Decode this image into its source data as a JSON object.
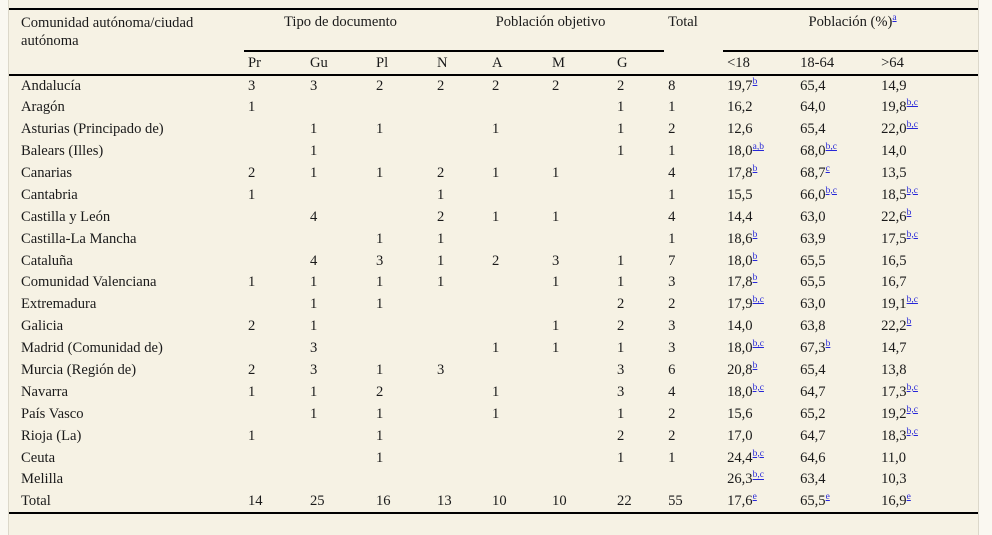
{
  "colors": {
    "footnote_link": "#2626d8",
    "table_bg": "#f6f2e4",
    "page_bg": "#faf8f1",
    "text": "#1a1a1a",
    "rule": "#000000"
  },
  "table": {
    "region_header": "Comunidad autónoma/ciudad autónoma",
    "group_tipo": "Tipo de documento",
    "group_poblacion_objetivo": "Población objetivo",
    "group_total": "Total",
    "group_poblacion_pct": "Población (%)",
    "group_poblacion_pct_sup": "a",
    "subheaders": [
      "Pr",
      "Gu",
      "Pl",
      "N",
      "A",
      "M",
      "G",
      "<18",
      "18-64",
      ">64"
    ],
    "rows": [
      [
        "Andalucía",
        "3",
        "3",
        "2",
        "2",
        "2",
        "2",
        "2",
        "8",
        "19,7^b",
        "65,4",
        "14,9"
      ],
      [
        "Aragón",
        "1",
        "",
        "",
        "",
        "",
        "",
        "1",
        "1",
        "16,2",
        "64,0",
        "19,8^b,c"
      ],
      [
        "Asturias (Principado de)",
        "",
        "1",
        "1",
        "",
        "1",
        "",
        "1",
        "2",
        "12,6",
        "65,4",
        "22,0^b,c"
      ],
      [
        "Balears (Illes)",
        "",
        "1",
        "",
        "",
        "",
        "",
        "1",
        "1",
        "18,0^a,b",
        "68,0^b,c",
        "14,0"
      ],
      [
        "Canarias",
        "2",
        "1",
        "1",
        "2",
        "1",
        "1",
        "",
        "4",
        "17,8^b",
        "68,7^c",
        "13,5"
      ],
      [
        "Cantabria",
        "1",
        "",
        "",
        "1",
        "",
        "",
        "",
        "1",
        "15,5",
        "66,0^b,c",
        "18,5^b,c"
      ],
      [
        "Castilla y León",
        "",
        "4",
        "",
        "2",
        "1",
        "1",
        "",
        "4",
        "14,4",
        "63,0",
        "22,6^b"
      ],
      [
        "Castilla-La Mancha",
        "",
        "",
        "1",
        "1",
        "",
        "",
        "",
        "1",
        "18,6^b",
        "63,9",
        "17,5^b,c"
      ],
      [
        "Cataluña",
        "",
        "4",
        "3",
        "1",
        "2",
        "3",
        "1",
        "7",
        "18,0^b",
        "65,5",
        "16,5"
      ],
      [
        "Comunidad Valenciana",
        "1",
        "1",
        "1",
        "1",
        "",
        "1",
        "1",
        "3",
        "17,8^b",
        "65,5",
        "16,7"
      ],
      [
        "Extremadura",
        "",
        "1",
        "1",
        "",
        "",
        "",
        "2",
        "2",
        "17,9^b,c",
        "63,0",
        "19,1^b,c"
      ],
      [
        "Galicia",
        "2",
        "1",
        "",
        "",
        "",
        "1",
        "2",
        "3",
        "14,0",
        "63,8",
        "22,2^b"
      ],
      [
        "Madrid (Comunidad de)",
        "",
        "3",
        "",
        "",
        "1",
        "1",
        "1",
        "3",
        "18,0^b,c",
        "67,3^b",
        "14,7"
      ],
      [
        "Murcia (Región de)",
        "2",
        "3",
        "1",
        "3",
        "",
        "",
        "3",
        "6",
        "20,8^b",
        "65,4",
        "13,8"
      ],
      [
        "Navarra",
        "1",
        "1",
        "2",
        "",
        "1",
        "",
        "3",
        "4",
        "18,0^b,c",
        "64,7",
        "17,3^b,c"
      ],
      [
        "País Vasco",
        "",
        "1",
        "1",
        "",
        "1",
        "",
        "1",
        "2",
        "15,6",
        "65,2",
        "19,2^b,c"
      ],
      [
        "Rioja (La)",
        "1",
        "",
        "1",
        "",
        "",
        "",
        "2",
        "2",
        "17,0",
        "64,7",
        "18,3^b,c"
      ],
      [
        "Ceuta",
        "",
        "",
        "1",
        "",
        "",
        "",
        "1",
        "1",
        "24,4^b,c",
        "64,6",
        "11,0"
      ],
      [
        "Melilla",
        "",
        "",
        "",
        "",
        "",
        "",
        "",
        "",
        "26,3^b,c",
        "63,4",
        "10,3"
      ],
      [
        "Total",
        "14",
        "25",
        "16",
        "13",
        "10",
        "10",
        "22",
        "55",
        "17,6^e",
        "65,5^e",
        "16,9^e"
      ]
    ]
  }
}
